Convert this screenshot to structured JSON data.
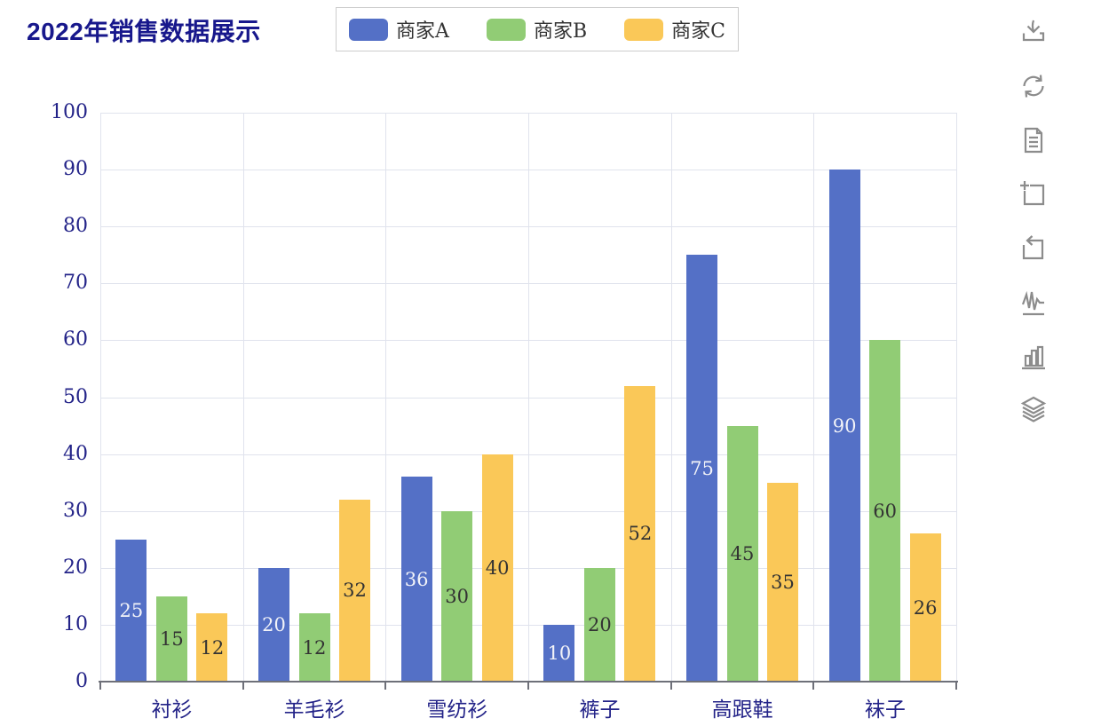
{
  "title": "2022年销售数据展示",
  "legend": {
    "items": [
      {
        "label": "商家A",
        "color": "#5470c6"
      },
      {
        "label": "商家B",
        "color": "#91cc75"
      },
      {
        "label": "商家C",
        "color": "#fac858"
      }
    ]
  },
  "toolbar": {
    "icons": [
      "save-as-image",
      "restore",
      "data-view",
      "data-zoom",
      "data-zoom-reset",
      "switch-to-line-chart",
      "switch-to-bar-chart",
      "switch-to-stack"
    ]
  },
  "chart_data": {
    "type": "bar",
    "title": "2022年销售数据展示",
    "categories": [
      "衬衫",
      "羊毛衫",
      "雪纺衫",
      "裤子",
      "高跟鞋",
      "袜子"
    ],
    "series": [
      {
        "name": "商家A",
        "color": "#5470c6",
        "label_color": "#f2f3f8",
        "values": [
          25,
          20,
          36,
          10,
          75,
          90
        ]
      },
      {
        "name": "商家B",
        "color": "#91cc75",
        "label_color": "#333333",
        "values": [
          15,
          12,
          30,
          20,
          45,
          60
        ]
      },
      {
        "name": "商家C",
        "color": "#fac858",
        "label_color": "#333333",
        "values": [
          12,
          32,
          40,
          52,
          35,
          26
        ]
      }
    ],
    "xlabel": "",
    "ylabel": "",
    "ylim": [
      0,
      100
    ],
    "y_ticks": [
      0,
      10,
      20,
      30,
      40,
      50,
      60,
      70,
      80,
      90,
      100
    ],
    "grid": true,
    "value_labels": "inside-center",
    "legend_position": "top"
  },
  "colors": {
    "title_text": "#18188c",
    "axis_text": "#232388",
    "gridline": "#e0e3ed",
    "axis_line": "#6e7079",
    "toolbar_icon": "#8c8c8c",
    "legend_border": "#cccccc",
    "background": "#ffffff"
  }
}
